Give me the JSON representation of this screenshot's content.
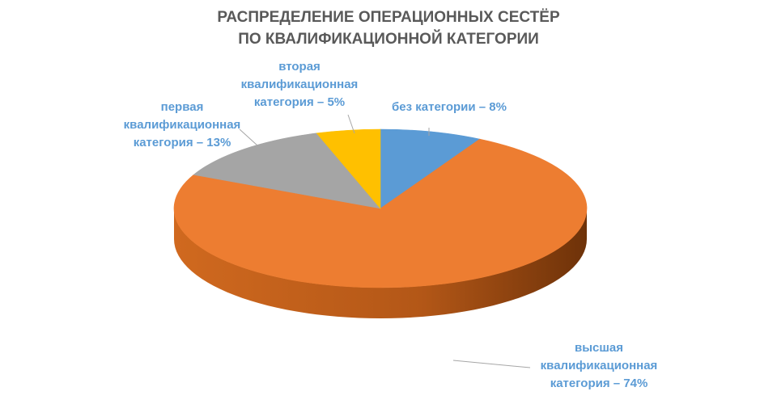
{
  "chart_data": {
    "type": "pie",
    "title_lines": [
      "РАСПРЕДЕЛЕНИЕ ОПЕРАЦИОННЫХ СЕСТЁР",
      "ПО  КВАЛИФИКАЦИОННОЙ КАТЕГОРИИ"
    ],
    "slices": [
      {
        "label": "без категории – 8%",
        "value": 8,
        "color": "#5B9BD5",
        "side": "#3F77AB"
      },
      {
        "label": "высшая\nквалификационная\nкатегория – 74%",
        "value": 74,
        "color": "#ED7D31",
        "side": "#B45A1A"
      },
      {
        "label": "первая\nквалификационная\nкатегория  – 13%",
        "value": 13,
        "color": "#A5A5A5",
        "side": "#7E7E7E"
      },
      {
        "label": "вторая\nквалификационная\nкатегория – 5%",
        "value": 5,
        "color": "#FFC000",
        "side": "#C79500"
      }
    ],
    "label_color": "#5B9BD5",
    "leader_color": "#A6A6A6"
  }
}
